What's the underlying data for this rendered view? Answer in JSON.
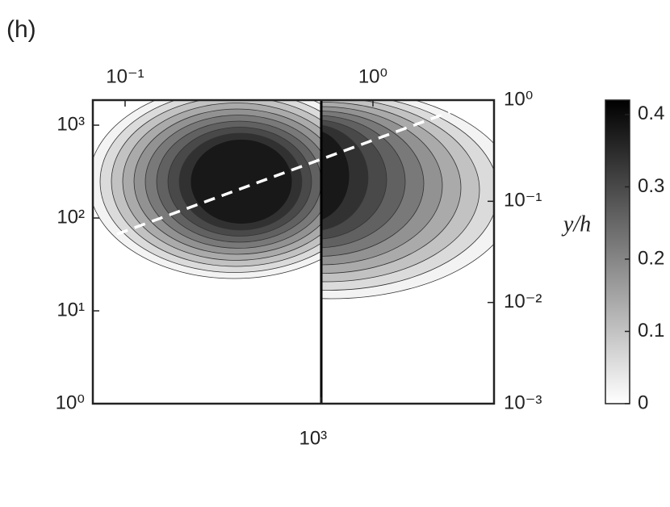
{
  "chart_data": {
    "type": "contour",
    "title": "(h)",
    "y2label": "y/h",
    "log_scale": true,
    "colormap_from": "#ffffff",
    "colormap_to": "#000000",
    "xlim": [
      120,
      4980
    ],
    "xticks": [
      {
        "value": 1000,
        "label": "10³"
      }
    ],
    "x2lim": [
      0.0741,
      3.08
    ],
    "x2ticks": [
      {
        "value": 0.1,
        "label": "10⁻¹"
      },
      {
        "value": 1,
        "label": "10⁰"
      }
    ],
    "ylim": [
      1,
      1862
    ],
    "yticks": [
      {
        "value": 1,
        "label": "10⁰"
      },
      {
        "value": 10,
        "label": "10¹"
      },
      {
        "value": 100,
        "label": "10²"
      },
      {
        "value": 1000,
        "label": "10³"
      }
    ],
    "y2lim": [
      0.001,
      1
    ],
    "y2ticks": [
      {
        "value": 0.001,
        "label": "10⁻³"
      },
      {
        "value": 0.01,
        "label": "10⁻²"
      },
      {
        "value": 0.1,
        "label": "10⁻¹"
      },
      {
        "value": 1,
        "label": "10⁰"
      }
    ],
    "levels": [
      0.02,
      0.06,
      0.1,
      0.14,
      0.18,
      0.22,
      0.26,
      0.3,
      0.34,
      0.38
    ],
    "clim": [
      0,
      0.42
    ],
    "cticks": [
      0,
      0.1,
      0.2,
      0.3,
      0.4
    ]
  }
}
